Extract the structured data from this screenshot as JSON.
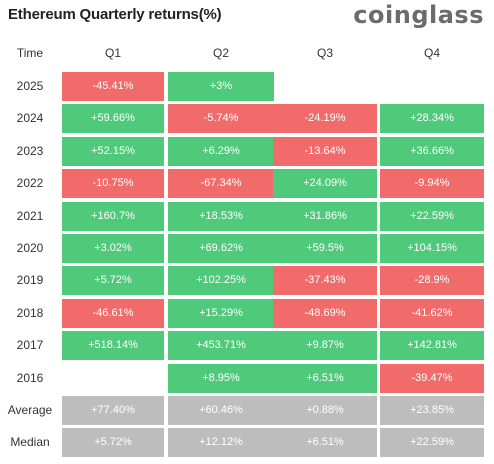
{
  "header": {
    "title": "Ethereum Quarterly returns(%)",
    "brand": "coinglass"
  },
  "table": {
    "corner_label": "Time",
    "columns": [
      "Q1",
      "Q2",
      "Q3",
      "Q4"
    ],
    "rows": [
      {
        "label": "2025",
        "cells": [
          "-45.41%",
          "+3%",
          "",
          ""
        ]
      },
      {
        "label": "2024",
        "cells": [
          "+59.66%",
          "-5.74%",
          "-24.19%",
          "+28.34%"
        ]
      },
      {
        "label": "2023",
        "cells": [
          "+52.15%",
          "+6.29%",
          "-13.64%",
          "+36.66%"
        ]
      },
      {
        "label": "2022",
        "cells": [
          "-10.75%",
          "-67.34%",
          "+24.09%",
          "-9.94%"
        ]
      },
      {
        "label": "2021",
        "cells": [
          "+160.7%",
          "+18.53%",
          "+31.86%",
          "+22.59%"
        ]
      },
      {
        "label": "2020",
        "cells": [
          "+3.02%",
          "+69.62%",
          "+59.5%",
          "+104.15%"
        ]
      },
      {
        "label": "2019",
        "cells": [
          "+5.72%",
          "+102.25%",
          "-37.43%",
          "-28.9%"
        ]
      },
      {
        "label": "2018",
        "cells": [
          "-46.61%",
          "+15.29%",
          "-48.69%",
          "-41.62%"
        ]
      },
      {
        "label": "2017",
        "cells": [
          "+518.14%",
          "+453.71%",
          "+9.87%",
          "+142.81%"
        ]
      },
      {
        "label": "2016",
        "cells": [
          "",
          "+8.95%",
          "+6.51%",
          "-39.47%"
        ]
      },
      {
        "label": "Average",
        "cells": [
          "+77.40%",
          "+60.46%",
          "+0.88%",
          "+23.85%"
        ],
        "summary": true
      },
      {
        "label": "Median",
        "cells": [
          "+5.72%",
          "+12.12%",
          "+6.51%",
          "+22.59%"
        ],
        "summary": true
      }
    ]
  },
  "colors": {
    "positive": "#4fc97a",
    "negative": "#f26b6b",
    "summary": "#bdbdbd"
  },
  "chart_data": {
    "type": "table",
    "title": "Ethereum Quarterly returns(%)",
    "columns": [
      "Q1",
      "Q2",
      "Q3",
      "Q4"
    ],
    "rows": [
      "2025",
      "2024",
      "2023",
      "2022",
      "2021",
      "2020",
      "2019",
      "2018",
      "2017",
      "2016",
      "Average",
      "Median"
    ],
    "values": [
      [
        -45.41,
        3,
        null,
        null
      ],
      [
        59.66,
        -5.74,
        -24.19,
        28.34
      ],
      [
        52.15,
        6.29,
        -13.64,
        36.66
      ],
      [
        -10.75,
        -67.34,
        24.09,
        -9.94
      ],
      [
        160.7,
        18.53,
        31.86,
        22.59
      ],
      [
        3.02,
        69.62,
        59.5,
        104.15
      ],
      [
        5.72,
        102.25,
        -37.43,
        -28.9
      ],
      [
        -46.61,
        15.29,
        -48.69,
        -41.62
      ],
      [
        518.14,
        453.71,
        9.87,
        142.81
      ],
      [
        null,
        8.95,
        6.51,
        -39.47
      ],
      [
        77.4,
        60.46,
        0.88,
        23.85
      ],
      [
        5.72,
        12.12,
        6.51,
        22.59
      ]
    ]
  }
}
